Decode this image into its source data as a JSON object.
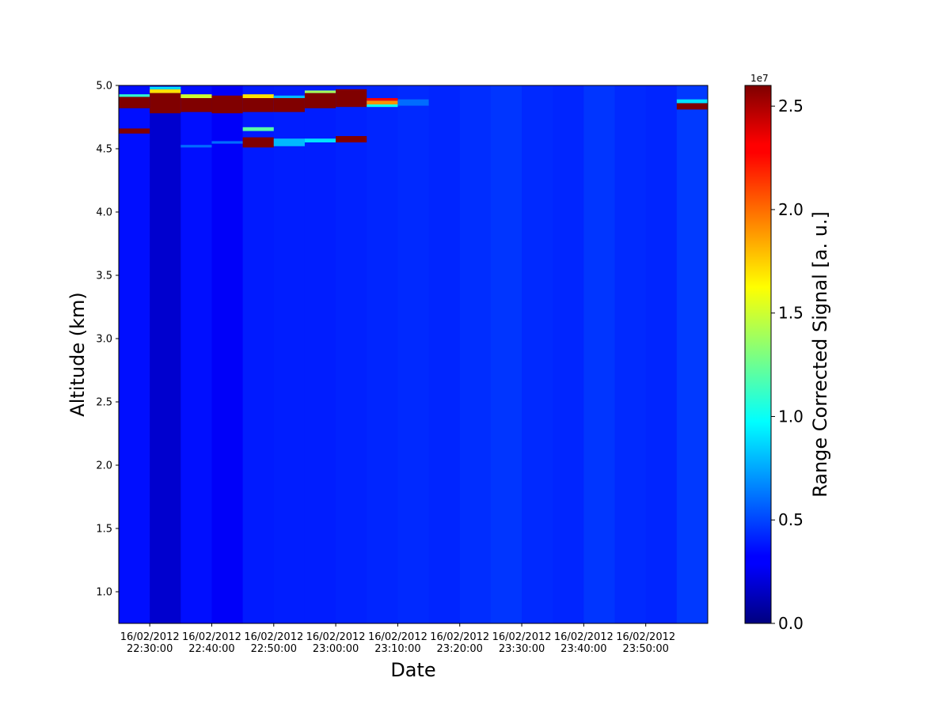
{
  "chart_data": {
    "type": "heatmap",
    "title": "",
    "xlabel": "Date",
    "ylabel": "Altitude (km)",
    "colorbar_label": "Range Corrected Signal [a. u.]",
    "colorbar_exponent": "1e7",
    "colormap": "jet",
    "color_range": [
      0,
      26000000
    ],
    "x_range_minutes_after_2225": [
      0,
      95
    ],
    "ylim": [
      0.75,
      5.0
    ],
    "x_ticks": [
      {
        "minute": 5,
        "date": "16/02/2012",
        "time": "22:30:00"
      },
      {
        "minute": 15,
        "date": "16/02/2012",
        "time": "22:40:00"
      },
      {
        "minute": 25,
        "date": "16/02/2012",
        "time": "22:50:00"
      },
      {
        "minute": 35,
        "date": "16/02/2012",
        "time": "23:00:00"
      },
      {
        "minute": 45,
        "date": "16/02/2012",
        "time": "23:10:00"
      },
      {
        "minute": 55,
        "date": "16/02/2012",
        "time": "23:20:00"
      },
      {
        "minute": 65,
        "date": "16/02/2012",
        "time": "23:30:00"
      },
      {
        "minute": 75,
        "date": "16/02/2012",
        "time": "23:40:00"
      },
      {
        "minute": 85,
        "date": "16/02/2012",
        "time": "23:50:00"
      }
    ],
    "y_ticks": [
      "1.0",
      "1.5",
      "2.0",
      "2.5",
      "3.0",
      "3.5",
      "4.0",
      "4.5",
      "5.0"
    ],
    "y_tick_values": [
      1.0,
      1.5,
      2.0,
      2.5,
      3.0,
      3.5,
      4.0,
      4.5,
      5.0
    ],
    "colorbar_ticks": [
      "0.0",
      "0.5",
      "1.0",
      "1.5",
      "2.0",
      "2.5"
    ],
    "colorbar_tick_values": [
      0,
      5000000,
      10000000,
      15000000,
      20000000,
      25000000
    ],
    "profiles": [
      {
        "start": "22:25",
        "end": "22:30",
        "background": 3600000,
        "layers": [
          {
            "from": 4.82,
            "to": 4.91,
            "value": 26000000
          },
          {
            "from": 4.91,
            "to": 4.93,
            "value": 11000000
          },
          {
            "from": 4.62,
            "to": 4.66,
            "value": 26000000
          }
        ]
      },
      {
        "start": "22:30",
        "end": "22:35",
        "background": 2000000,
        "layers": [
          {
            "from": 4.78,
            "to": 4.94,
            "value": 26000000
          },
          {
            "from": 4.94,
            "to": 4.97,
            "value": 17000000
          },
          {
            "from": 4.97,
            "to": 4.99,
            "value": 9000000
          }
        ]
      },
      {
        "start": "22:35",
        "end": "22:40",
        "background": 3600000,
        "layers": [
          {
            "from": 4.79,
            "to": 4.9,
            "value": 26000000
          },
          {
            "from": 4.9,
            "to": 4.93,
            "value": 15000000
          },
          {
            "from": 4.51,
            "to": 4.53,
            "value": 6000000
          }
        ]
      },
      {
        "start": "22:40",
        "end": "22:45",
        "background": 3100000,
        "layers": [
          {
            "from": 4.78,
            "to": 4.92,
            "value": 26000000
          },
          {
            "from": 4.54,
            "to": 4.56,
            "value": 6000000
          }
        ]
      },
      {
        "start": "22:45",
        "end": "22:50",
        "background": 3900000,
        "layers": [
          {
            "from": 4.79,
            "to": 4.9,
            "value": 26000000
          },
          {
            "from": 4.9,
            "to": 4.93,
            "value": 17000000
          },
          {
            "from": 4.51,
            "to": 4.59,
            "value": 26000000
          },
          {
            "from": 4.64,
            "to": 4.67,
            "value": 12000000
          }
        ]
      },
      {
        "start": "22:50",
        "end": "22:55",
        "background": 4000000,
        "layers": [
          {
            "from": 4.79,
            "to": 4.9,
            "value": 26000000
          },
          {
            "from": 4.9,
            "to": 4.92,
            "value": 8000000
          },
          {
            "from": 4.52,
            "to": 4.58,
            "value": 8000000
          }
        ]
      },
      {
        "start": "22:55",
        "end": "23:00",
        "background": 4000000,
        "layers": [
          {
            "from": 4.82,
            "to": 4.94,
            "value": 26000000
          },
          {
            "from": 4.94,
            "to": 4.96,
            "value": 14000000
          },
          {
            "from": 4.55,
            "to": 4.58,
            "value": 9000000
          }
        ]
      },
      {
        "start": "23:00",
        "end": "23:05",
        "background": 4100000,
        "layers": [
          {
            "from": 4.83,
            "to": 4.97,
            "value": 26000000
          },
          {
            "from": 4.55,
            "to": 4.6,
            "value": 26000000
          }
        ]
      },
      {
        "start": "23:05",
        "end": "23:10",
        "background": 4200000,
        "layers": [
          {
            "from": 4.83,
            "to": 4.85,
            "value": 10000000
          },
          {
            "from": 4.85,
            "to": 4.88,
            "value": 19000000
          },
          {
            "from": 4.88,
            "to": 4.9,
            "value": 23000000
          }
        ]
      },
      {
        "start": "23:10",
        "end": "23:15",
        "background": 4300000,
        "layers": [
          {
            "from": 4.84,
            "to": 4.89,
            "value": 6000000
          }
        ]
      },
      {
        "start": "23:15",
        "end": "23:20",
        "background": 4200000,
        "layers": []
      },
      {
        "start": "23:20",
        "end": "23:25",
        "background": 4400000,
        "layers": []
      },
      {
        "start": "23:25",
        "end": "23:30",
        "background": 4600000,
        "layers": []
      },
      {
        "start": "23:30",
        "end": "23:35",
        "background": 4300000,
        "layers": []
      },
      {
        "start": "23:35",
        "end": "23:40",
        "background": 4200000,
        "layers": []
      },
      {
        "start": "23:40",
        "end": "23:45",
        "background": 4600000,
        "layers": []
      },
      {
        "start": "23:45",
        "end": "23:50",
        "background": 4300000,
        "layers": []
      },
      {
        "start": "23:50",
        "end": "23:55",
        "background": 4200000,
        "layers": []
      },
      {
        "start": "23:55",
        "end": "24:00",
        "background": 4700000,
        "layers": [
          {
            "from": 4.81,
            "to": 4.86,
            "value": 26000000
          },
          {
            "from": 4.86,
            "to": 4.89,
            "value": 9000000
          }
        ]
      }
    ]
  }
}
